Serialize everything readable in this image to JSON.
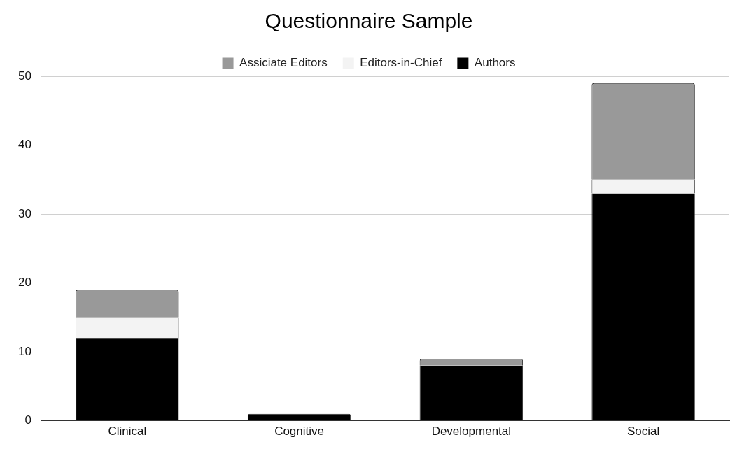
{
  "chart_data": {
    "type": "bar",
    "title": "Questionnaire Sample",
    "categories": [
      "Clinical",
      "Cognitive",
      "Developmental",
      "Social"
    ],
    "stacked": true,
    "ylim": [
      0,
      50
    ],
    "yticks": [
      0,
      10,
      20,
      30,
      40,
      50
    ],
    "grid": "y",
    "legend": "top",
    "series": [
      {
        "name": "Authors",
        "color": "#000000",
        "values": [
          12,
          1,
          8,
          33
        ]
      },
      {
        "name": "Editors-in-Chief",
        "color": "#f3f3f3",
        "values": [
          3,
          null,
          null,
          2
        ]
      },
      {
        "name": "Assiciate Editors",
        "color": "#999999",
        "values": [
          4,
          null,
          1,
          14
        ]
      }
    ]
  }
}
